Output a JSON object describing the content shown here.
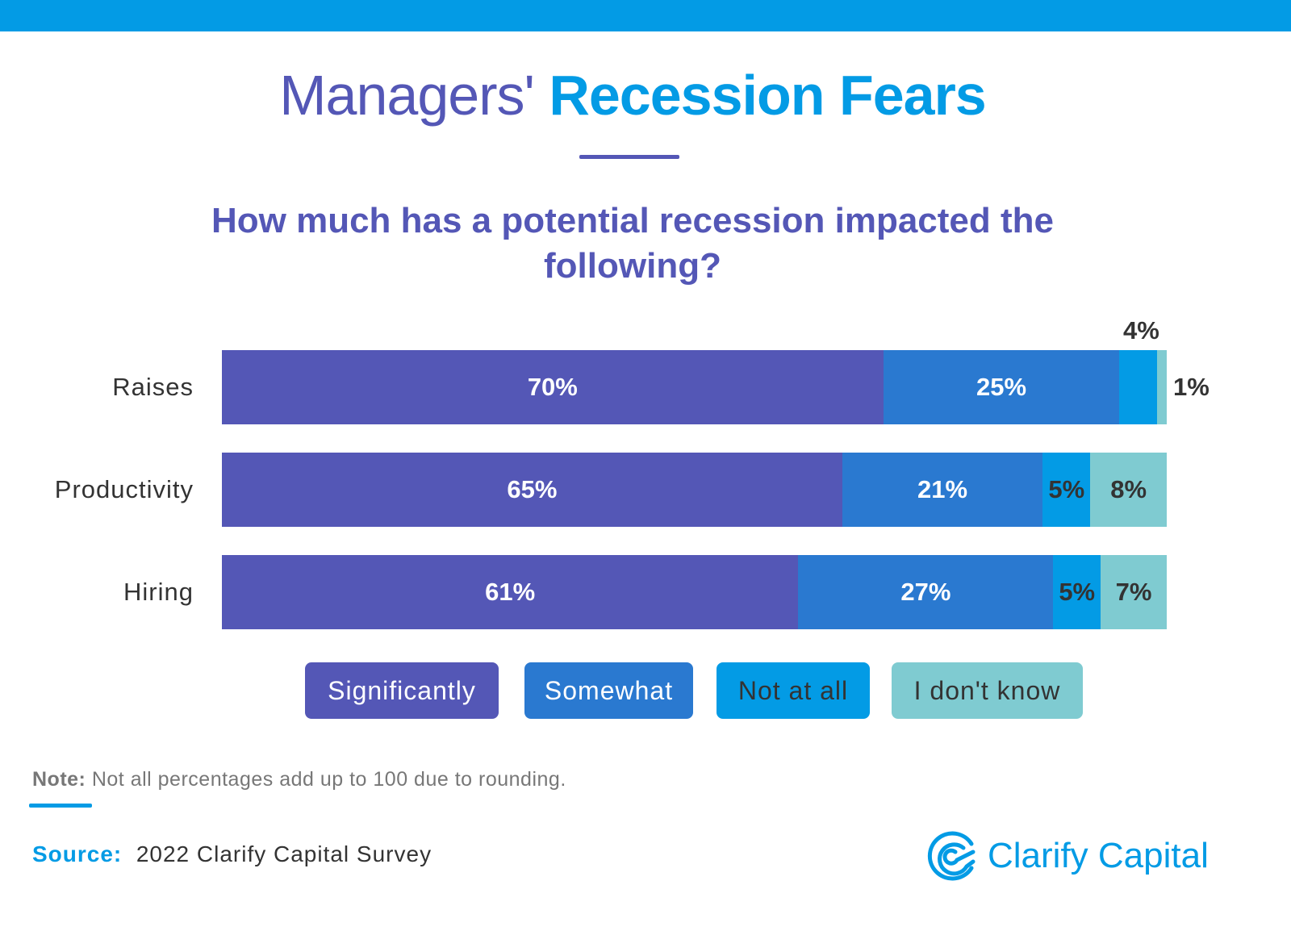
{
  "title": {
    "part1": "Managers'",
    "part2": "Recession Fears"
  },
  "chart_data": {
    "type": "bar",
    "orientation": "horizontal",
    "stacked": true,
    "title": "How much has a potential recession impacted the following?",
    "categories": [
      "Raises",
      "Productivity",
      "Hiring"
    ],
    "series": [
      {
        "name": "Significantly",
        "values": [
          70,
          65,
          61
        ],
        "color": "#5457b6"
      },
      {
        "name": "Somewhat",
        "values": [
          25,
          21,
          27
        ],
        "color": "#2a79d0"
      },
      {
        "name": "Not at all",
        "values": [
          4,
          5,
          5
        ],
        "color": "#039be5"
      },
      {
        "name": "I don't know",
        "values": [
          1,
          8,
          7
        ],
        "color": "#7fcbd1"
      }
    ],
    "labels": [
      [
        "70%",
        "25%",
        "4%",
        "1%"
      ],
      [
        "65%",
        "21%",
        "5%",
        "8%"
      ],
      [
        "61%",
        "27%",
        "5%",
        "7%"
      ]
    ],
    "legend": "bottom"
  },
  "note": {
    "label": "Note:",
    "text": "Not all percentages add up to 100 due to rounding."
  },
  "source": {
    "label": "Source:",
    "text": "2022 Clarify Capital Survey"
  },
  "logo": {
    "text": "Clarify Capital",
    "icon": "clarify-logo-icon"
  }
}
